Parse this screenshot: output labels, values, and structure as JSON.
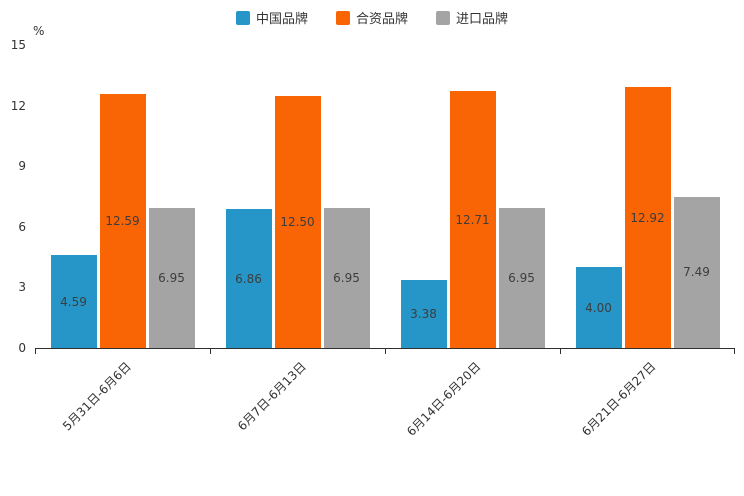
{
  "chart_data": {
    "type": "bar",
    "title": "",
    "unit_label": "%",
    "categories": [
      "5月31日-6月6日",
      "6月7日-6月13日",
      "6月14日-6月20日",
      "6月21日-6月27日"
    ],
    "series": [
      {
        "name": "中国品牌",
        "color": "#2696c8",
        "values": [
          4.59,
          6.86,
          3.38,
          4.0
        ]
      },
      {
        "name": "合资品牌",
        "color": "#f96505",
        "values": [
          12.59,
          12.5,
          12.71,
          12.92
        ]
      },
      {
        "name": "进口品牌",
        "color": "#a4a4a4",
        "values": [
          6.95,
          6.95,
          6.95,
          7.49
        ]
      }
    ],
    "ylim": [
      0,
      15
    ],
    "yticks": [
      0,
      3,
      6,
      9,
      12,
      15
    ],
    "legend_position": "top",
    "grid": false,
    "value_labels": "inside-center",
    "value_format_decimals": 2
  },
  "colors": {
    "axis": "#2f2f2f",
    "tick_label": "#333333",
    "value_label": "#3d3d3d",
    "background": "#ffffff"
  }
}
